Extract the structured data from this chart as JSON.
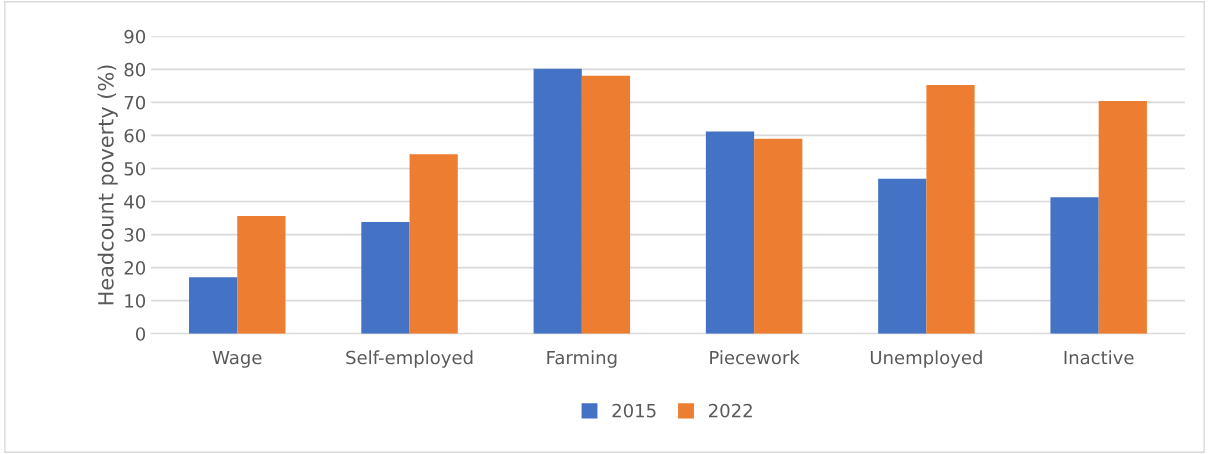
{
  "chart_data": {
    "type": "bar",
    "ylabel": "Headcount poverty (%)",
    "categories": [
      "Wage",
      "Self-employed",
      "Farming",
      "Piecework",
      "Unemployed",
      "Inactive"
    ],
    "series": [
      {
        "name": "2015",
        "color": "#4472c4",
        "values": [
          17.1,
          33.8,
          80.2,
          61.2,
          46.9,
          41.3
        ]
      },
      {
        "name": "2022",
        "color": "#ed7d31",
        "values": [
          35.6,
          54.3,
          78.1,
          59.0,
          75.3,
          70.4
        ]
      }
    ],
    "ylim": [
      0,
      90
    ],
    "yticks": [
      0,
      10,
      20,
      30,
      40,
      50,
      60,
      70,
      80,
      90
    ],
    "grid": "y",
    "legend": "bottom"
  }
}
